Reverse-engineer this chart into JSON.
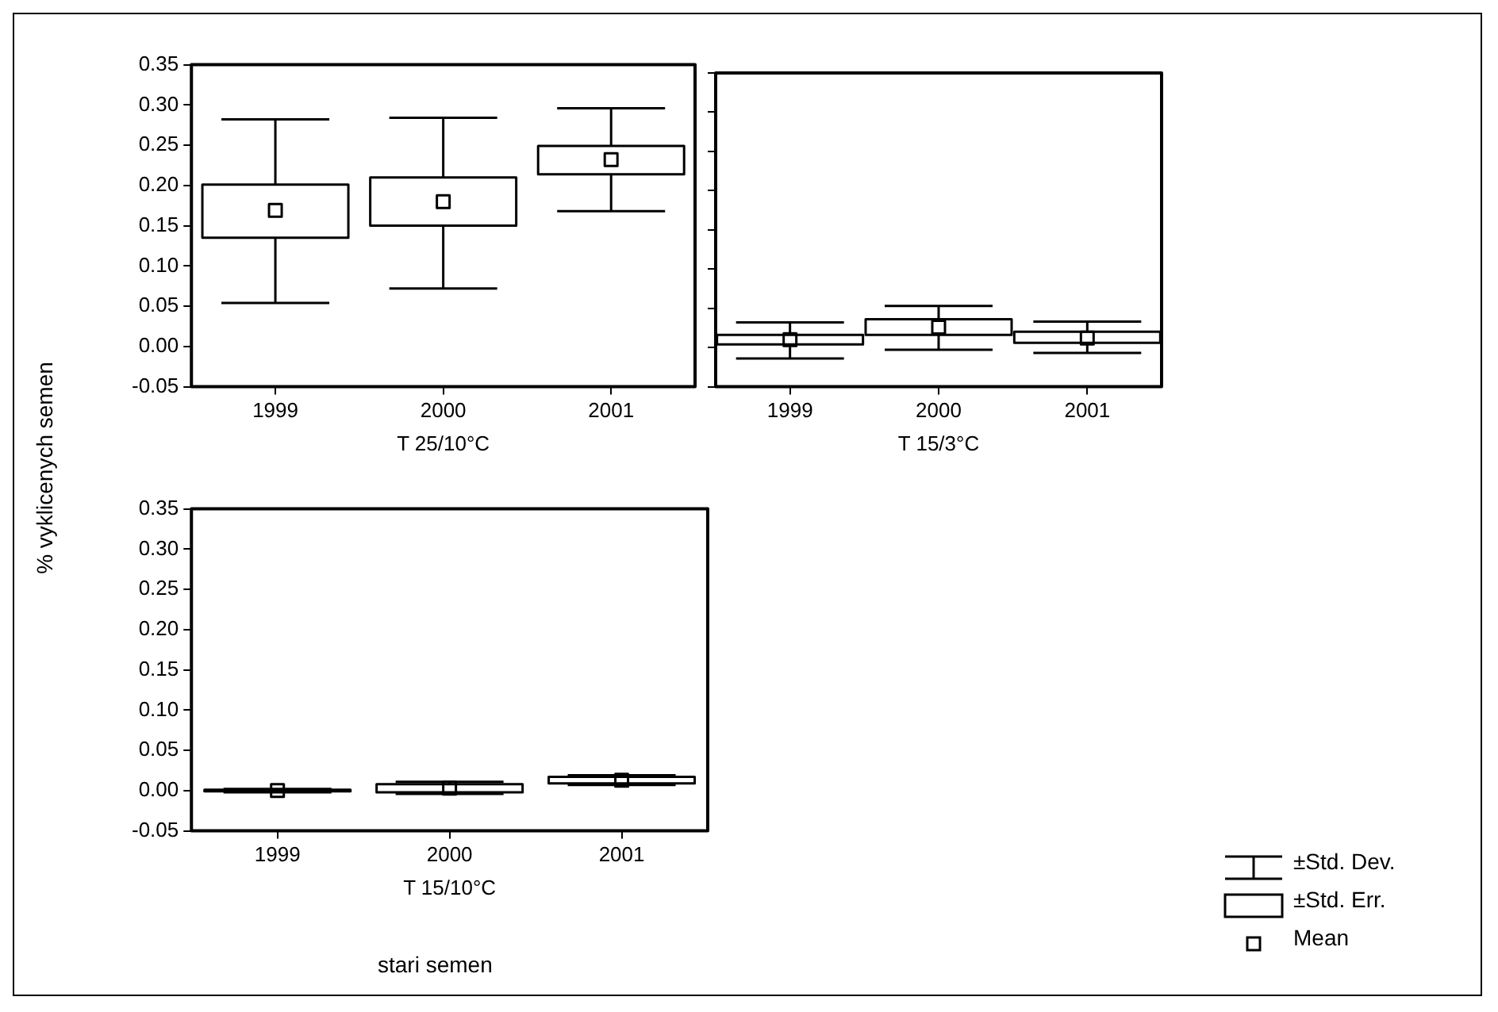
{
  "chart_data": [
    {
      "type": "box",
      "xlabel": "T 25/10°C",
      "ylabel": "% vyklicenych semen",
      "categories": [
        "1999",
        "2000",
        "2001"
      ],
      "series": [
        {
          "color": "#000000",
          "boxes": [
            {
              "low": 0.054,
              "q1": 0.135,
              "q3": 0.201,
              "high": 0.282,
              "mean": 0.169
            },
            {
              "low": 0.072,
              "q1": 0.15,
              "q3": 0.21,
              "high": 0.284,
              "mean": 0.18
            },
            {
              "low": 0.168,
              "q1": 0.214,
              "q3": 0.249,
              "high": 0.296,
              "mean": 0.232
            }
          ]
        }
      ],
      "ylim": [
        -0.05,
        0.35
      ],
      "yticks": [
        {
          "value": -0.05,
          "label": "-0.05"
        },
        {
          "value": 0,
          "label": "0.00"
        },
        {
          "value": 0.05,
          "label": "0.05"
        },
        {
          "value": 0.1,
          "label": "0.10"
        },
        {
          "value": 0.15,
          "label": "0.15"
        },
        {
          "value": 0.2,
          "label": "0.20"
        },
        {
          "value": 0.25,
          "label": "0.25"
        },
        {
          "value": 0.3,
          "label": "0.30"
        },
        {
          "value": 0.35,
          "label": "0.35"
        }
      ],
      "grid": false
    },
    {
      "type": "box",
      "xlabel": "T 15/3°C",
      "categories": [
        "1999",
        "2000",
        "2001"
      ],
      "series": [
        {
          "color": "#000000",
          "boxes": [
            {
              "low": -0.014,
              "q1": 0.004,
              "q3": 0.016,
              "high": 0.032,
              "mean": 0.01
            },
            {
              "low": -0.003,
              "q1": 0.016,
              "q3": 0.036,
              "high": 0.053,
              "mean": 0.026
            },
            {
              "low": -0.007,
              "q1": 0.006,
              "q3": 0.02,
              "high": 0.033,
              "mean": 0.012
            }
          ]
        }
      ],
      "ylim": [
        -0.05,
        0.35
      ],
      "yticks": [
        -0.05,
        0,
        0.05,
        0.1,
        0.15,
        0.2,
        0.25,
        0.3,
        0.35
      ],
      "tick_labels": "x",
      "grid": false
    },
    {
      "type": "box",
      "xlabel": "T 15/10°C",
      "categories": [
        "1999",
        "2000",
        "2001"
      ],
      "series": [
        {
          "color": "#000000",
          "boxes": [
            {
              "low": -0.002,
              "q1": -0.001,
              "q3": 0.001,
              "high": 0.002,
              "mean": 0.0
            },
            {
              "low": -0.004,
              "q1": -0.002,
              "q3": 0.008,
              "high": 0.011,
              "mean": 0.003
            },
            {
              "low": 0.007,
              "q1": 0.009,
              "q3": 0.017,
              "high": 0.019,
              "mean": 0.013
            }
          ]
        }
      ],
      "ylim": [
        -0.05,
        0.35
      ],
      "yticks": [
        {
          "value": -0.05,
          "label": "-0.05"
        },
        {
          "value": 0,
          "label": "0.00"
        },
        {
          "value": 0.05,
          "label": "0.05"
        },
        {
          "value": 0.1,
          "label": "0.10"
        },
        {
          "value": 0.15,
          "label": "0.15"
        },
        {
          "value": 0.2,
          "label": "0.20"
        },
        {
          "value": 0.25,
          "label": "0.25"
        },
        {
          "value": 0.3,
          "label": "0.30"
        },
        {
          "value": 0.35,
          "label": "0.35"
        }
      ],
      "grid": false,
      "annotations": [
        "stari semen",
        "±Std. Dev.",
        "±Std. Err.",
        "Mean"
      ]
    }
  ]
}
